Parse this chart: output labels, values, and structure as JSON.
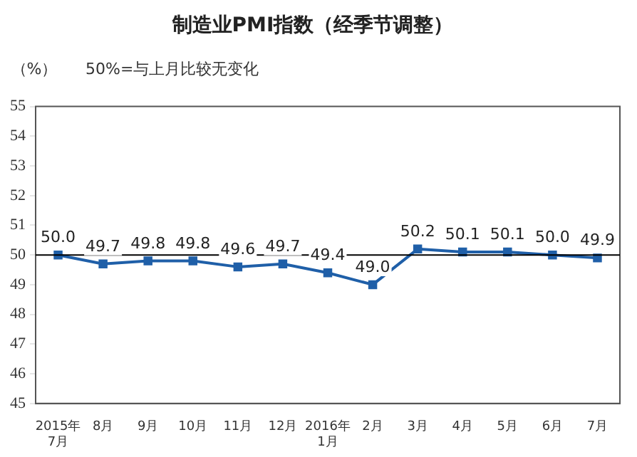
{
  "chart_data": {
    "type": "line",
    "title": "制造业PMI指数（经季节调整）",
    "ylabel": "（%）",
    "annotations": [
      "50%=与上月比较无变化"
    ],
    "categories": [
      "2015年\n7月",
      "8月",
      "9月",
      "10月",
      "11月",
      "12月",
      "2016年\n1月",
      "2月",
      "3月",
      "4月",
      "5月",
      "6月",
      "7月"
    ],
    "series": [
      {
        "color": "#1f5fa8",
        "values": [
          50.0,
          49.7,
          49.8,
          49.8,
          49.6,
          49.7,
          49.4,
          49.0,
          50.2,
          50.1,
          50.1,
          50.0,
          49.9
        ],
        "value_labels": [
          "50.0",
          "49.7",
          "49.8",
          "49.8",
          "49.6",
          "49.7",
          "49.4",
          "49.0",
          "50.2",
          "50.1",
          "50.1",
          "50.0",
          "49.9"
        ]
      }
    ],
    "ylim": [
      45,
      55
    ],
    "yticks": [
      45,
      46,
      47,
      48,
      49,
      50,
      51,
      52,
      53,
      54,
      55
    ],
    "ref_lines": [
      {
        "axis": "y",
        "value": 50,
        "label": null,
        "color": "#000000"
      }
    ],
    "grid": false,
    "legend": false,
    "marker": "square",
    "line_style": "solid"
  }
}
